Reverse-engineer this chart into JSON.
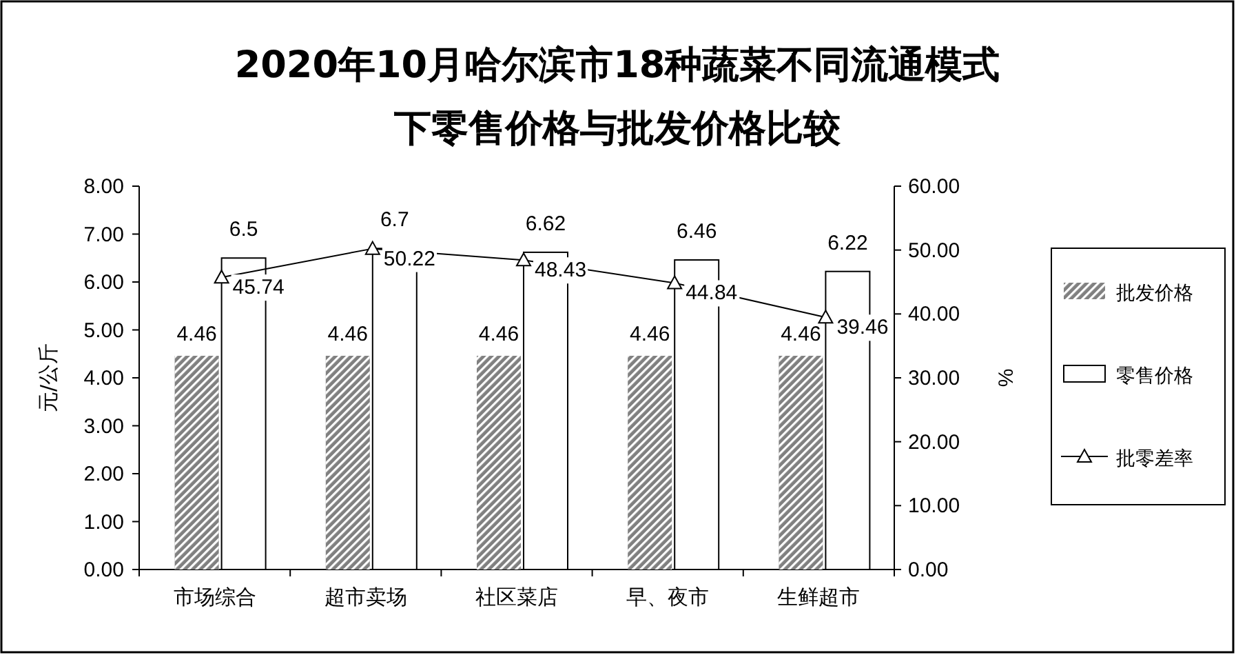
{
  "chart_data": {
    "type": "bar",
    "title": "2020年10月哈尔滨市18种蔬菜不同流通模式下零售价格与批发价格比较",
    "ylabel": "元/公斤",
    "y2label": "%",
    "categories": [
      "市场综合",
      "超市卖场",
      "社区菜店",
      "早、夜市",
      "生鲜超市"
    ],
    "series": [
      {
        "name": "批发价格",
        "color": "#808080",
        "values": [
          4.46,
          4.46,
          4.46,
          4.46,
          4.46
        ]
      },
      {
        "name": "零售价格",
        "color": "#ffffff",
        "values": [
          6.5,
          6.7,
          6.62,
          6.46,
          6.22
        ]
      },
      {
        "name": "批零差率",
        "type": "line",
        "axis": "y2",
        "color": "#000000",
        "marker": "triangle",
        "values": [
          45.74,
          50.22,
          48.43,
          44.84,
          39.46
        ]
      }
    ],
    "ylim": [
      0,
      8
    ],
    "yticks": [
      {
        "value": 0,
        "label": "0.00"
      },
      {
        "value": 1,
        "label": "1.00"
      },
      {
        "value": 2,
        "label": "2.00"
      },
      {
        "value": 3,
        "label": "3.00"
      },
      {
        "value": 4,
        "label": "4.00"
      },
      {
        "value": 5,
        "label": "5.00"
      },
      {
        "value": 6,
        "label": "6.00"
      },
      {
        "value": 7,
        "label": "7.00"
      },
      {
        "value": 8,
        "label": "8.00"
      }
    ],
    "y2lim": [
      0,
      60
    ],
    "y2ticks": [
      {
        "value": 0,
        "label": "0.00"
      },
      {
        "value": 10,
        "label": "10.00"
      },
      {
        "value": 20,
        "label": "20.00"
      },
      {
        "value": 30,
        "label": "30.00"
      },
      {
        "value": 40,
        "label": "40.00"
      },
      {
        "value": 50,
        "label": "50.00"
      },
      {
        "value": 60,
        "label": "60.00"
      }
    ],
    "data_labels": true,
    "grid": false,
    "legend": "right"
  }
}
